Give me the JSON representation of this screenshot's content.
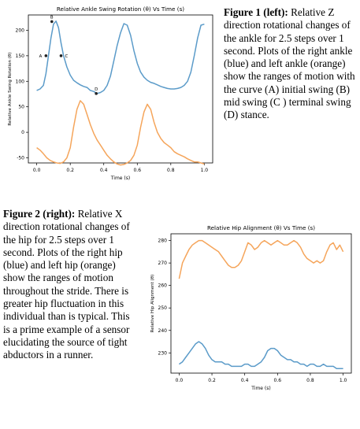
{
  "captions": {
    "fig1": {
      "bold": "Figure 1 (left):",
      "text": " Relative Z direction rotational changes of the ankle for 2.5 steps over 1 second. Plots of the  right ankle (blue) and left ankle (orange) show the ranges of motion with the curve (A)  initial swing (B) mid swing (C ) terminal swing (D) stance."
    },
    "fig2": {
      "bold": "Figure 2 (right):",
      "text": " Relative X direction rotational changes of the hip for  2.5 steps over 1 second. Plots of the  right hip (blue) and left hip (orange) show the ranges of motion throughout the stride. There is greater hip fluctuation in this individual than is typical. This is a prime example of a sensor elucidating the source of tight abductors in a runner."
    }
  },
  "colors": {
    "blue": "#5b9bc9",
    "orange": "#f5a55b",
    "marker": "#222222"
  },
  "chart_data": [
    {
      "type": "line",
      "title": "Relative Ankle Swing Rotation (θ) Vs Time (s)",
      "xlabel": "Time (s)",
      "ylabel": "Relative Ankle Swing Rotation (θ)",
      "xlim": [
        -0.05,
        1.05
      ],
      "ylim": [
        -60,
        230
      ],
      "xticks": [
        "0.0",
        "0.2",
        "0.4",
        "0.6",
        "0.8",
        "1.0"
      ],
      "xtick_values": [
        0,
        0.2,
        0.4,
        0.6,
        0.8,
        1.0
      ],
      "yticks": [
        "-50",
        "0",
        "50",
        "100",
        "150",
        "200"
      ],
      "ytick_values": [
        -50,
        0,
        50,
        100,
        150,
        200
      ],
      "series": [
        {
          "color": "blue",
          "x": [
            0.0,
            0.02,
            0.04,
            0.055,
            0.07,
            0.085,
            0.1,
            0.115,
            0.13,
            0.145,
            0.16,
            0.18,
            0.2,
            0.22,
            0.24,
            0.26,
            0.28,
            0.3,
            0.32,
            0.34,
            0.36,
            0.38,
            0.4,
            0.42,
            0.44,
            0.46,
            0.48,
            0.5,
            0.52,
            0.54,
            0.56,
            0.58,
            0.6,
            0.62,
            0.64,
            0.66,
            0.68,
            0.7,
            0.72,
            0.74,
            0.76,
            0.78,
            0.8,
            0.82,
            0.84,
            0.86,
            0.88,
            0.9,
            0.92,
            0.94,
            0.96,
            0.98,
            1.0
          ],
          "y": [
            82,
            85,
            92,
            115,
            150,
            185,
            212,
            218,
            205,
            175,
            150,
            128,
            112,
            102,
            97,
            93,
            90,
            88,
            82,
            80,
            76,
            78,
            82,
            92,
            110,
            140,
            170,
            195,
            213,
            210,
            190,
            160,
            135,
            118,
            108,
            102,
            98,
            96,
            93,
            90,
            88,
            86,
            85,
            85,
            86,
            88,
            92,
            100,
            118,
            150,
            185,
            210,
            212
          ]
        },
        {
          "color": "orange",
          "x": [
            0.0,
            0.02,
            0.04,
            0.06,
            0.08,
            0.1,
            0.12,
            0.14,
            0.16,
            0.18,
            0.2,
            0.22,
            0.24,
            0.26,
            0.28,
            0.3,
            0.32,
            0.34,
            0.36,
            0.38,
            0.4,
            0.42,
            0.44,
            0.46,
            0.48,
            0.5,
            0.52,
            0.54,
            0.56,
            0.58,
            0.6,
            0.62,
            0.64,
            0.66,
            0.68,
            0.7,
            0.72,
            0.74,
            0.76,
            0.78,
            0.8,
            0.82,
            0.84,
            0.86,
            0.88,
            0.9,
            0.92,
            0.94,
            0.96,
            0.98,
            1.0
          ],
          "y": [
            -30,
            -35,
            -42,
            -50,
            -55,
            -58,
            -60,
            -61,
            -58,
            -50,
            -30,
            10,
            45,
            62,
            55,
            35,
            15,
            -2,
            -15,
            -25,
            -35,
            -45,
            -52,
            -58,
            -62,
            -64,
            -63,
            -60,
            -55,
            -45,
            -25,
            10,
            40,
            55,
            45,
            20,
            0,
            -12,
            -20,
            -25,
            -30,
            -38,
            -42,
            -45,
            -48,
            -52,
            -55,
            -58,
            -58,
            -60,
            -62
          ]
        }
      ],
      "annotations": [
        {
          "label": "A",
          "x": 0.055,
          "y": 150
        },
        {
          "label": "B",
          "x": 0.09,
          "y": 217
        },
        {
          "label": "C",
          "x": 0.145,
          "y": 150
        },
        {
          "label": "D",
          "x": 0.355,
          "y": 76
        }
      ],
      "grid": false,
      "legend": "none"
    },
    {
      "type": "line",
      "title": "Relative Hip Alignment (θ) Vs Time (s)",
      "xlabel": "Time (s)",
      "ylabel": "Relative Hip Alignment (θ)",
      "xlim": [
        -0.05,
        1.05
      ],
      "ylim": [
        221,
        283
      ],
      "xticks": [
        "0.0",
        "0.2",
        "0.4",
        "0.6",
        "0.8",
        "1.0"
      ],
      "xtick_values": [
        0,
        0.2,
        0.4,
        0.6,
        0.8,
        1.0
      ],
      "yticks": [
        "230",
        "240",
        "250",
        "260",
        "270",
        "280"
      ],
      "ytick_values": [
        230,
        240,
        250,
        260,
        270,
        280
      ],
      "series": [
        {
          "color": "blue",
          "x": [
            0.0,
            0.02,
            0.04,
            0.06,
            0.08,
            0.1,
            0.12,
            0.14,
            0.16,
            0.18,
            0.2,
            0.22,
            0.24,
            0.26,
            0.28,
            0.3,
            0.32,
            0.34,
            0.36,
            0.38,
            0.4,
            0.42,
            0.44,
            0.46,
            0.48,
            0.5,
            0.52,
            0.54,
            0.56,
            0.58,
            0.6,
            0.62,
            0.64,
            0.66,
            0.68,
            0.7,
            0.72,
            0.74,
            0.76,
            0.78,
            0.8,
            0.82,
            0.84,
            0.86,
            0.88,
            0.9,
            0.92,
            0.94,
            0.96,
            0.98,
            1.0
          ],
          "y": [
            225,
            226,
            228,
            230,
            232,
            234,
            235,
            234,
            232,
            229,
            227,
            226,
            226,
            226,
            225,
            225,
            224,
            224,
            224,
            224,
            225,
            225,
            224,
            224,
            225,
            226,
            228,
            231,
            232,
            232,
            231,
            229,
            228,
            227,
            227,
            226,
            226,
            225,
            225,
            224,
            225,
            225,
            224,
            224,
            225,
            224,
            224,
            224,
            223,
            223,
            223
          ]
        },
        {
          "color": "orange",
          "x": [
            0.0,
            0.02,
            0.04,
            0.06,
            0.08,
            0.1,
            0.12,
            0.14,
            0.16,
            0.18,
            0.2,
            0.22,
            0.24,
            0.26,
            0.28,
            0.3,
            0.32,
            0.34,
            0.36,
            0.38,
            0.4,
            0.42,
            0.44,
            0.46,
            0.48,
            0.5,
            0.52,
            0.54,
            0.56,
            0.58,
            0.6,
            0.62,
            0.64,
            0.66,
            0.68,
            0.7,
            0.72,
            0.74,
            0.76,
            0.78,
            0.8,
            0.82,
            0.84,
            0.86,
            0.88,
            0.9,
            0.92,
            0.94,
            0.96,
            0.98,
            1.0
          ],
          "y": [
            263,
            270,
            273,
            276,
            278,
            279,
            280,
            280,
            279,
            278,
            277,
            276,
            275,
            273,
            271,
            269,
            268,
            268,
            269,
            271,
            275,
            279,
            278,
            276,
            277,
            279,
            280,
            279,
            278,
            279,
            280,
            279,
            278,
            278,
            279,
            280,
            279,
            277,
            274,
            272,
            271,
            270,
            271,
            270,
            271,
            275,
            278,
            279,
            276,
            278,
            275
          ]
        }
      ],
      "grid": false,
      "legend": "none"
    }
  ]
}
